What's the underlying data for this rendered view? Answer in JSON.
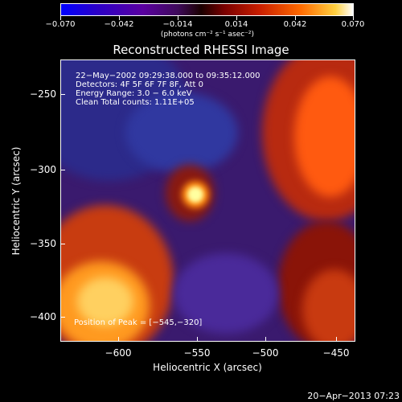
{
  "colorbar": {
    "ticks": [
      "−0.070",
      "−0.042",
      "−0.014",
      "0.014",
      "0.042",
      "0.070"
    ],
    "units": "(photons cm⁻² s⁻¹ asec⁻²)"
  },
  "title": "Reconstructed RHESSI Image",
  "info_lines": [
    "22−May−2002 09:29:38.000 to 09:35:12.000",
    "Detectors: 4F 5F 6F 7F 8F, Att 0",
    "Energy Range: 3.0 − 6.0 keV",
    "Clean     Total counts: 1.11E+05"
  ],
  "peak_label": "Position of Peak = [−545,−320]",
  "y_ticks": [
    "−250",
    "−300",
    "−350",
    "−400"
  ],
  "x_ticks": [
    "−600",
    "−550",
    "−500",
    "−450"
  ],
  "xlabel": "Heliocentric X (arcsec)",
  "ylabel": "Heliocentric Y (arcsec)",
  "timestamp": "20−Apr−2013 07:23"
}
